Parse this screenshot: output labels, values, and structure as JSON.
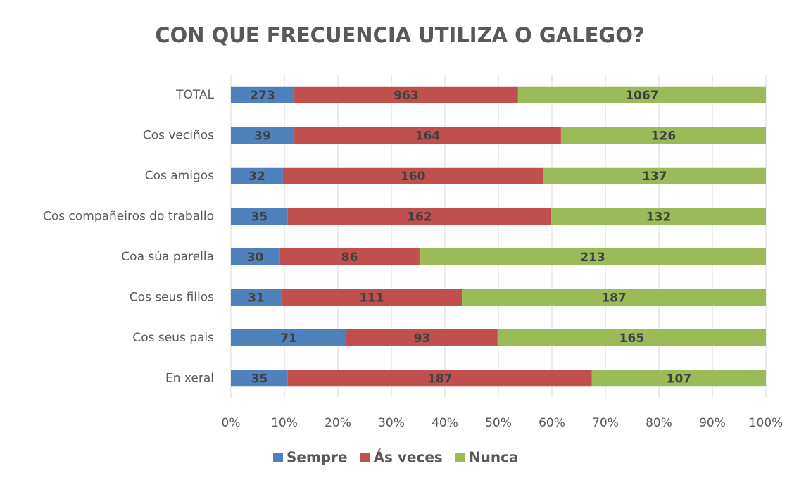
{
  "chart_data": {
    "type": "bar",
    "orientation": "horizontal",
    "stacking": "percent",
    "title": "CON QUE FRECUENCIA UTILIZA O GALEGO?",
    "categories": [
      "TOTAL",
      "Cos veciños",
      "Cos amigos",
      "Cos compañeiros do traballo",
      "Coa súa parella",
      "Cos seus fillos",
      "Cos seus pais",
      "En xeral"
    ],
    "series": [
      {
        "name": "Sempre",
        "color": "#4f81bd",
        "values": [
          273,
          39,
          32,
          35,
          30,
          31,
          71,
          35
        ]
      },
      {
        "name": "Ás veces",
        "color": "#c0504d",
        "values": [
          963,
          164,
          160,
          162,
          86,
          111,
          93,
          187
        ]
      },
      {
        "name": "Nunca",
        "color": "#9bbb59",
        "values": [
          1067,
          126,
          137,
          132,
          213,
          187,
          165,
          107
        ]
      }
    ],
    "xlim": [
      0,
      100
    ],
    "xticks": [
      {
        "value": 0,
        "label": "0%"
      },
      {
        "value": 10,
        "label": "10%"
      },
      {
        "value": 20,
        "label": "20%"
      },
      {
        "value": 30,
        "label": "30%"
      },
      {
        "value": 40,
        "label": "40%"
      },
      {
        "value": 50,
        "label": "50%"
      },
      {
        "value": 60,
        "label": "60%"
      },
      {
        "value": 70,
        "label": "70%"
      },
      {
        "value": 80,
        "label": "80%"
      },
      {
        "value": 90,
        "label": "90%"
      },
      {
        "value": 100,
        "label": "100%"
      }
    ],
    "grid": true,
    "legend": "bottom"
  }
}
